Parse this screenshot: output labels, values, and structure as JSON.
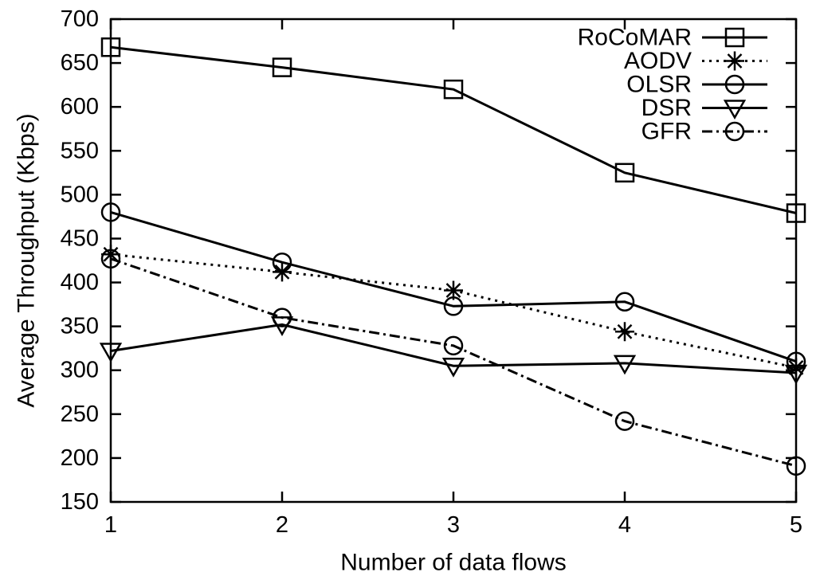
{
  "chart_data": {
    "type": "line",
    "title": "",
    "xlabel": "Number of data flows",
    "ylabel": "Average Throughput (Kbps)",
    "x": [
      1,
      2,
      3,
      4,
      5
    ],
    "xlim": [
      1,
      5
    ],
    "ylim": [
      150,
      700
    ],
    "ytick_step": 50,
    "yticks": [
      150,
      200,
      250,
      300,
      350,
      400,
      450,
      500,
      550,
      600,
      650,
      700
    ],
    "xticks": [
      1,
      2,
      3,
      4,
      5
    ],
    "grid": false,
    "legend_position": "top-right-inside",
    "foreground_color": "#000000",
    "background_color": "#ffffff",
    "series": [
      {
        "name": "RoCoMAR",
        "marker": "square",
        "line": "solid",
        "values": [
          668,
          645,
          620,
          525,
          479
        ]
      },
      {
        "name": "AODV",
        "marker": "asterisk",
        "line": "dotted",
        "values": [
          432,
          412,
          391,
          344,
          303
        ]
      },
      {
        "name": "OLSR",
        "marker": "circle",
        "line": "solid",
        "values": [
          480,
          423,
          373,
          378,
          310
        ]
      },
      {
        "name": "DSR",
        "marker": "triangle-down",
        "line": "solid",
        "values": [
          322,
          352,
          305,
          308,
          297
        ]
      },
      {
        "name": "GFR",
        "marker": "circle",
        "line": "dash-dot",
        "values": [
          427,
          360,
          328,
          242,
          191
        ]
      }
    ]
  }
}
